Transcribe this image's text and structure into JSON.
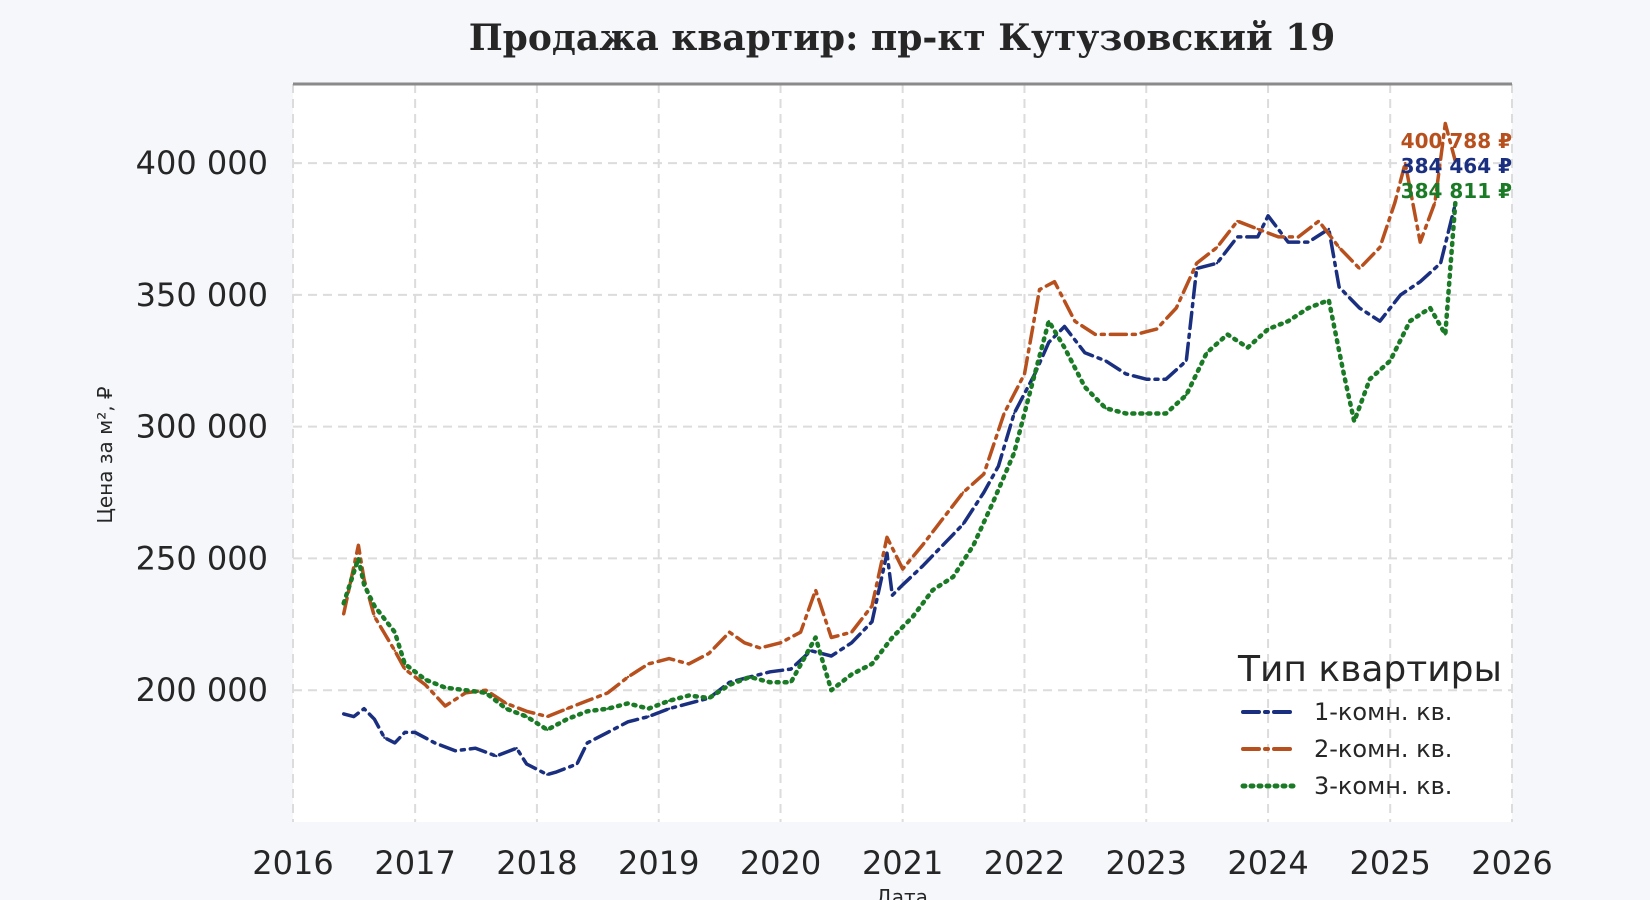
{
  "chart_data": {
    "type": "line",
    "title": "Продажа квартир: пр-кт Кутузовский 19",
    "xlabel": "Дата",
    "ylabel": "Цена за м², ₽",
    "xlim": [
      "2016-01-01",
      "2026-01-01"
    ],
    "ylim": [
      150000,
      430000
    ],
    "x_ticks": [
      "2016",
      "2017",
      "2018",
      "2019",
      "2020",
      "2021",
      "2022",
      "2023",
      "2024",
      "2025",
      "2026"
    ],
    "y_ticks": [
      200000,
      250000,
      300000,
      350000,
      400000
    ],
    "y_tick_labels": [
      "200 000",
      "250 000",
      "300 000",
      "350 000",
      "400 000"
    ],
    "grid": true,
    "legend": {
      "title": "Тип квартиры",
      "position": "lower-right"
    },
    "series": [
      {
        "name": "1-комн. кв.",
        "color": "#1a2f80",
        "style": "dashdot",
        "end_label": "384 464 ₽",
        "points": [
          [
            "2016-06-01",
            191000
          ],
          [
            "2016-07-01",
            190000
          ],
          [
            "2016-08-01",
            193000
          ],
          [
            "2016-09-01",
            189000
          ],
          [
            "2016-10-01",
            182000
          ],
          [
            "2016-11-01",
            180000
          ],
          [
            "2016-12-01",
            184000
          ],
          [
            "2017-01-01",
            184000
          ],
          [
            "2017-03-01",
            180000
          ],
          [
            "2017-05-01",
            177000
          ],
          [
            "2017-07-01",
            178000
          ],
          [
            "2017-09-01",
            175000
          ],
          [
            "2017-11-01",
            178000
          ],
          [
            "2017-12-01",
            172000
          ],
          [
            "2018-02-01",
            168000
          ],
          [
            "2018-03-01",
            169000
          ],
          [
            "2018-05-01",
            172000
          ],
          [
            "2018-06-01",
            180000
          ],
          [
            "2018-08-01",
            184000
          ],
          [
            "2018-10-01",
            188000
          ],
          [
            "2018-12-01",
            190000
          ],
          [
            "2019-02-01",
            193000
          ],
          [
            "2019-04-01",
            195000
          ],
          [
            "2019-06-01",
            197000
          ],
          [
            "2019-08-01",
            203000
          ],
          [
            "2019-10-01",
            205000
          ],
          [
            "2019-12-01",
            207000
          ],
          [
            "2020-02-01",
            208000
          ],
          [
            "2020-04-01",
            215000
          ],
          [
            "2020-06-01",
            213000
          ],
          [
            "2020-08-01",
            218000
          ],
          [
            "2020-10-01",
            226000
          ],
          [
            "2020-11-15",
            252000
          ],
          [
            "2020-12-01",
            236000
          ],
          [
            "2021-01-01",
            240000
          ],
          [
            "2021-03-01",
            247000
          ],
          [
            "2021-05-01",
            255000
          ],
          [
            "2021-07-01",
            263000
          ],
          [
            "2021-09-01",
            275000
          ],
          [
            "2021-10-15",
            285000
          ],
          [
            "2021-12-01",
            305000
          ],
          [
            "2022-02-01",
            320000
          ],
          [
            "2022-03-15",
            332000
          ],
          [
            "2022-05-01",
            338000
          ],
          [
            "2022-07-01",
            328000
          ],
          [
            "2022-09-01",
            325000
          ],
          [
            "2022-11-01",
            320000
          ],
          [
            "2023-01-01",
            318000
          ],
          [
            "2023-03-01",
            318000
          ],
          [
            "2023-05-01",
            325000
          ],
          [
            "2023-06-01",
            360000
          ],
          [
            "2023-08-01",
            362000
          ],
          [
            "2023-10-01",
            372000
          ],
          [
            "2023-12-01",
            372000
          ],
          [
            "2024-01-01",
            380000
          ],
          [
            "2024-03-01",
            370000
          ],
          [
            "2024-05-01",
            370000
          ],
          [
            "2024-07-01",
            375000
          ],
          [
            "2024-08-01",
            353000
          ],
          [
            "2024-10-01",
            345000
          ],
          [
            "2024-12-01",
            340000
          ],
          [
            "2025-02-01",
            350000
          ],
          [
            "2025-04-01",
            355000
          ],
          [
            "2025-06-01",
            362000
          ],
          [
            "2025-07-15",
            384464
          ]
        ]
      },
      {
        "name": "2-комн. кв.",
        "color": "#b8501e",
        "style": "dashdot",
        "end_label": "400 788 ₽",
        "points": [
          [
            "2016-06-01",
            229000
          ],
          [
            "2016-07-15",
            255000
          ],
          [
            "2016-08-01",
            242000
          ],
          [
            "2016-09-01",
            228000
          ],
          [
            "2016-11-01",
            215000
          ],
          [
            "2016-12-01",
            208000
          ],
          [
            "2017-02-01",
            202000
          ],
          [
            "2017-04-01",
            194000
          ],
          [
            "2017-06-01",
            199000
          ],
          [
            "2017-08-01",
            200000
          ],
          [
            "2017-10-01",
            195000
          ],
          [
            "2017-12-01",
            192000
          ],
          [
            "2018-02-01",
            190000
          ],
          [
            "2018-04-01",
            193000
          ],
          [
            "2018-06-01",
            196000
          ],
          [
            "2018-08-01",
            199000
          ],
          [
            "2018-10-01",
            205000
          ],
          [
            "2018-12-01",
            210000
          ],
          [
            "2019-02-01",
            212000
          ],
          [
            "2019-04-01",
            210000
          ],
          [
            "2019-06-01",
            214000
          ],
          [
            "2019-08-01",
            222000
          ],
          [
            "2019-09-15",
            218000
          ],
          [
            "2019-11-01",
            216000
          ],
          [
            "2020-01-01",
            218000
          ],
          [
            "2020-03-01",
            222000
          ],
          [
            "2020-04-15",
            238000
          ],
          [
            "2020-06-01",
            220000
          ],
          [
            "2020-08-01",
            222000
          ],
          [
            "2020-10-01",
            232000
          ],
          [
            "2020-11-15",
            258000
          ],
          [
            "2021-01-01",
            246000
          ],
          [
            "2021-03-01",
            255000
          ],
          [
            "2021-05-01",
            265000
          ],
          [
            "2021-07-01",
            275000
          ],
          [
            "2021-09-01",
            282000
          ],
          [
            "2021-11-01",
            305000
          ],
          [
            "2022-01-01",
            320000
          ],
          [
            "2022-02-15",
            352000
          ],
          [
            "2022-04-01",
            355000
          ],
          [
            "2022-06-01",
            340000
          ],
          [
            "2022-08-01",
            335000
          ],
          [
            "2022-10-01",
            335000
          ],
          [
            "2022-12-01",
            335000
          ],
          [
            "2023-02-01",
            337000
          ],
          [
            "2023-04-01",
            345000
          ],
          [
            "2023-06-01",
            362000
          ],
          [
            "2023-08-01",
            368000
          ],
          [
            "2023-10-01",
            378000
          ],
          [
            "2023-12-01",
            375000
          ],
          [
            "2024-02-01",
            372000
          ],
          [
            "2024-04-01",
            372000
          ],
          [
            "2024-06-01",
            378000
          ],
          [
            "2024-08-01",
            368000
          ],
          [
            "2024-10-01",
            360000
          ],
          [
            "2024-12-01",
            368000
          ],
          [
            "2025-01-15",
            385000
          ],
          [
            "2025-02-15",
            400000
          ],
          [
            "2025-04-01",
            370000
          ],
          [
            "2025-05-15",
            385000
          ],
          [
            "2025-06-15",
            415000
          ],
          [
            "2025-07-15",
            400788
          ]
        ]
      },
      {
        "name": "3-комн. кв.",
        "color": "#1a7a25",
        "style": "dotted",
        "end_label": "384 811 ₽",
        "points": [
          [
            "2016-06-01",
            233000
          ],
          [
            "2016-07-15",
            250000
          ],
          [
            "2016-08-01",
            240000
          ],
          [
            "2016-09-01",
            232000
          ],
          [
            "2016-11-01",
            222000
          ],
          [
            "2016-12-01",
            210000
          ],
          [
            "2017-02-01",
            204000
          ],
          [
            "2017-04-01",
            201000
          ],
          [
            "2017-06-01",
            200000
          ],
          [
            "2017-08-01",
            199000
          ],
          [
            "2017-10-01",
            193000
          ],
          [
            "2017-12-01",
            190000
          ],
          [
            "2018-02-01",
            185000
          ],
          [
            "2018-04-01",
            189000
          ],
          [
            "2018-06-01",
            192000
          ],
          [
            "2018-08-01",
            193000
          ],
          [
            "2018-10-01",
            195000
          ],
          [
            "2018-12-01",
            193000
          ],
          [
            "2019-02-01",
            196000
          ],
          [
            "2019-04-01",
            198000
          ],
          [
            "2019-06-01",
            197000
          ],
          [
            "2019-08-01",
            202000
          ],
          [
            "2019-10-01",
            205000
          ],
          [
            "2019-12-01",
            203000
          ],
          [
            "2020-02-01",
            203000
          ],
          [
            "2020-04-15",
            220000
          ],
          [
            "2020-06-01",
            200000
          ],
          [
            "2020-08-01",
            206000
          ],
          [
            "2020-10-01",
            210000
          ],
          [
            "2020-12-01",
            220000
          ],
          [
            "2021-02-01",
            228000
          ],
          [
            "2021-04-01",
            238000
          ],
          [
            "2021-06-01",
            243000
          ],
          [
            "2021-08-01",
            255000
          ],
          [
            "2021-10-01",
            272000
          ],
          [
            "2021-12-01",
            290000
          ],
          [
            "2022-02-01",
            320000
          ],
          [
            "2022-03-15",
            340000
          ],
          [
            "2022-05-01",
            330000
          ],
          [
            "2022-07-01",
            315000
          ],
          [
            "2022-09-01",
            307000
          ],
          [
            "2022-11-01",
            305000
          ],
          [
            "2023-01-01",
            305000
          ],
          [
            "2023-03-01",
            305000
          ],
          [
            "2023-05-01",
            312000
          ],
          [
            "2023-07-01",
            328000
          ],
          [
            "2023-09-01",
            335000
          ],
          [
            "2023-11-01",
            330000
          ],
          [
            "2024-01-01",
            337000
          ],
          [
            "2024-03-01",
            340000
          ],
          [
            "2024-05-01",
            345000
          ],
          [
            "2024-07-01",
            348000
          ],
          [
            "2024-08-15",
            320000
          ],
          [
            "2024-09-15",
            302000
          ],
          [
            "2024-11-01",
            318000
          ],
          [
            "2025-01-01",
            325000
          ],
          [
            "2025-03-01",
            340000
          ],
          [
            "2025-05-01",
            345000
          ],
          [
            "2025-06-15",
            335000
          ],
          [
            "2025-07-15",
            384811
          ]
        ]
      }
    ]
  }
}
